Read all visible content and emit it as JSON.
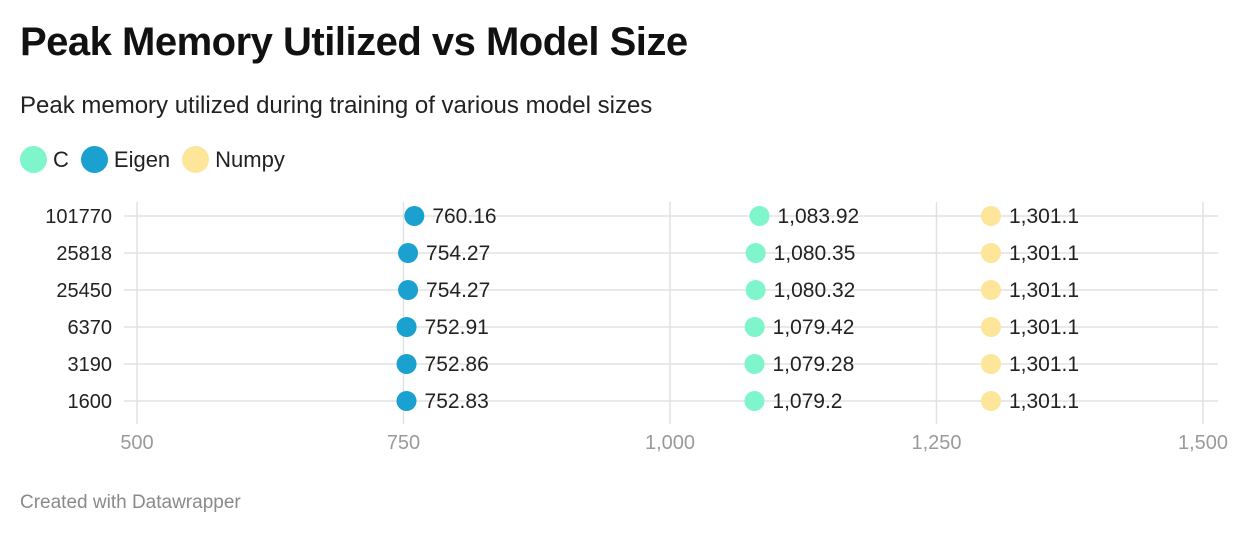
{
  "chart_data": {
    "type": "scatter",
    "title": "Peak Memory Utilized vs Model Size",
    "subtitle": "Peak memory utilized during training of various model sizes",
    "categories": [
      "101770",
      "25818",
      "25450",
      "6370",
      "3190",
      "1600"
    ],
    "series": [
      {
        "name": "C",
        "color": "#7ef5cb",
        "values": [
          1083.92,
          1080.35,
          1080.32,
          1079.42,
          1079.28,
          1079.2
        ],
        "labels": [
          "1,083.92",
          "1,080.35",
          "1,080.32",
          "1,079.42",
          "1,079.28",
          "1,079.2"
        ]
      },
      {
        "name": "Eigen",
        "color": "#1aa1cf",
        "values": [
          760.16,
          754.27,
          754.27,
          752.91,
          752.86,
          752.83
        ],
        "labels": [
          "760.16",
          "754.27",
          "754.27",
          "752.91",
          "752.86",
          "752.83"
        ]
      },
      {
        "name": "Numpy",
        "color": "#fde599",
        "values": [
          1301.1,
          1301.1,
          1301.1,
          1301.1,
          1301.1,
          1301.1
        ],
        "labels": [
          "1,301.1",
          "1,301.1",
          "1,301.1",
          "1,301.1",
          "1,301.1",
          "1,301.1"
        ]
      }
    ],
    "xlim": [
      500,
      1500
    ],
    "xticks": [
      500,
      750,
      1000,
      1250,
      1500
    ],
    "xtick_labels": [
      "500",
      "750",
      "1,000",
      "1,250",
      "1,500"
    ],
    "xlabel": "",
    "ylabel": "",
    "grid": true,
    "legend": "top-left"
  },
  "footer": {
    "credit": "Created with Datawrapper"
  }
}
